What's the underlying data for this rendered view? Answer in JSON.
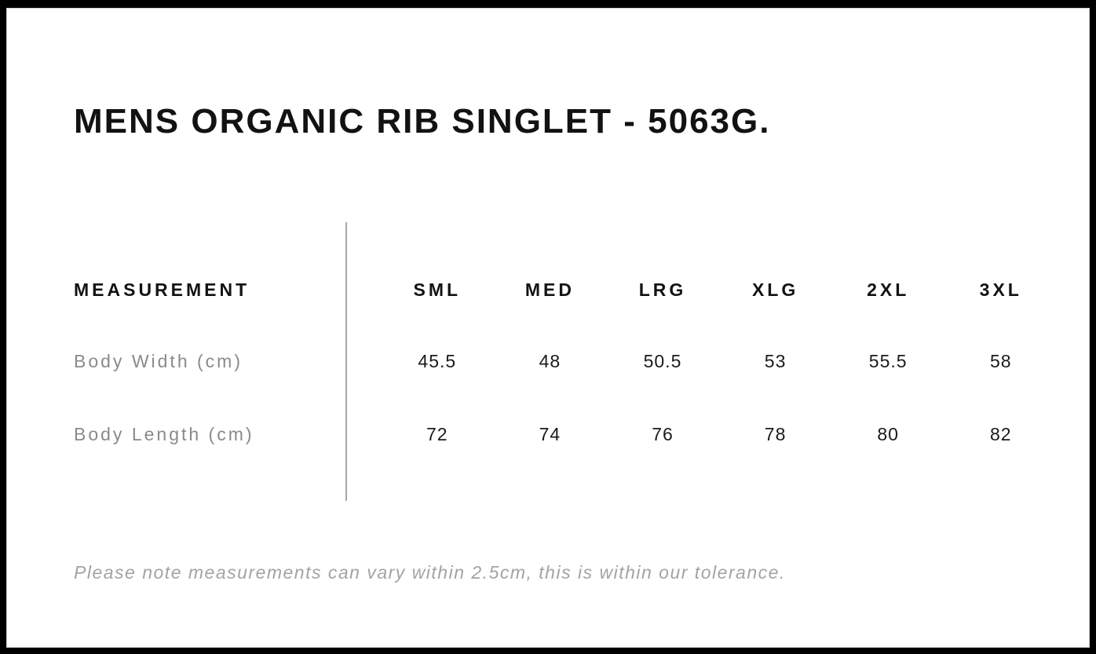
{
  "page": {
    "title": "MENS ORGANIC RIB SINGLET - 5063G.",
    "footnote": "Please note measurements can vary within 2.5cm, this is within our tolerance."
  },
  "size_chart": {
    "header_label": "MEASUREMENT",
    "sizes": [
      "SML",
      "MED",
      "LRG",
      "XLG",
      "2XL",
      "3XL"
    ],
    "rows": [
      {
        "label": "Body Width (cm)",
        "values": [
          "45.5",
          "48",
          "50.5",
          "53",
          "55.5",
          "58"
        ]
      },
      {
        "label": "Body Length (cm)",
        "values": [
          "72",
          "74",
          "76",
          "78",
          "80",
          "82"
        ]
      }
    ]
  },
  "colors": {
    "frame": "#000000",
    "page_background": "#ffffff",
    "heading_text": "#121212",
    "row_label_text": "#8a8a8a",
    "value_text": "#1a1a1a",
    "divider": "#a8a8a8",
    "footnote_text": "#a3a3a3"
  }
}
